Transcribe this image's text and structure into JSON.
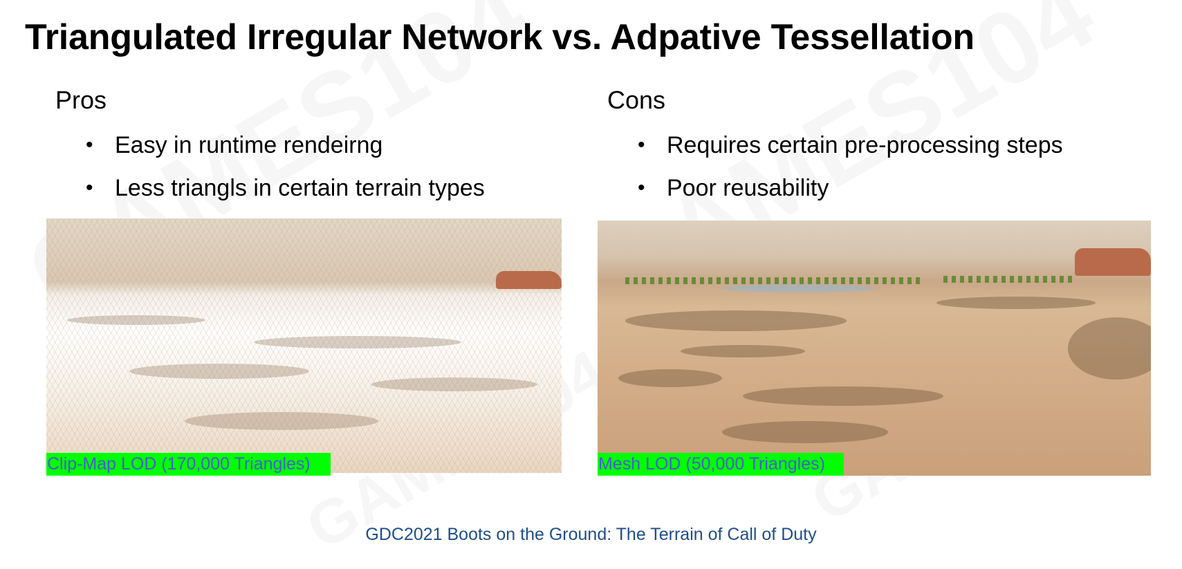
{
  "title": "Triangulated Irregular Network vs. Adpative Tessellation",
  "pros": {
    "heading": "Pros",
    "items": [
      "Easy in runtime rendeirng",
      "Less triangls in certain terrain types"
    ]
  },
  "cons": {
    "heading": "Cons",
    "items": [
      "Requires certain pre-processing steps",
      "Poor reusability"
    ]
  },
  "bullet_symbol": "•",
  "images": {
    "left_caption": "Clip-Map LOD (170,000 Triangles)",
    "right_caption": "Mesh LOD (50,000 Triangles)"
  },
  "source": "GDC2021 Boots on the Ground: The Terrain of Call of Duty",
  "watermark": "GAMES104",
  "colors": {
    "caption_bg": "#00ff00",
    "caption_text": "#4a5ccf",
    "source_text": "#1f4e8c"
  }
}
